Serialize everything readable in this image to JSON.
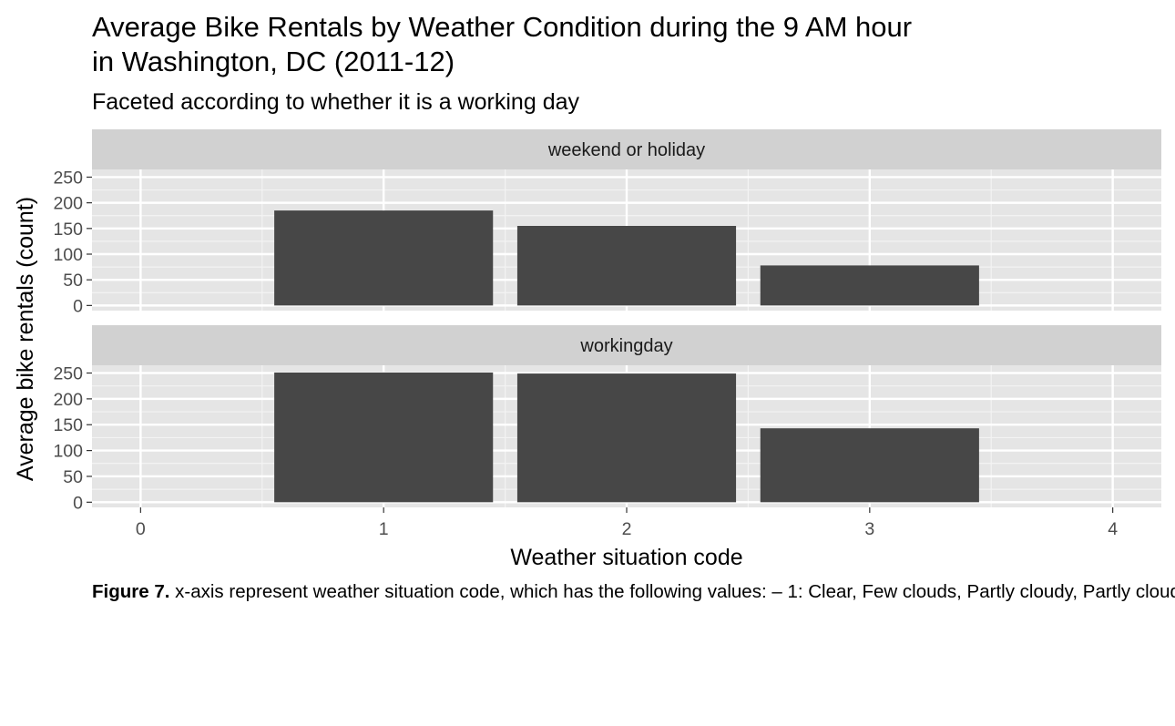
{
  "chart_data": {
    "type": "bar",
    "title_lines": [
      "Average Bike Rentals by Weather Condition during the 9 AM hour",
      "in Washington, DC (2011-12)"
    ],
    "subtitle": "Faceted according to whether it is a working day",
    "xlabel": "Weather situation code",
    "ylabel": "Average bike rentals (count)",
    "xlim": [
      -0.2,
      4.2
    ],
    "ylim": [
      -10,
      265
    ],
    "x_ticks": [
      0,
      1,
      2,
      3,
      4
    ],
    "x_tick_labels": [
      "0",
      "1",
      "2",
      "3",
      "4"
    ],
    "y_ticks": [
      0,
      50,
      100,
      150,
      200,
      250
    ],
    "y_tick_labels": [
      "0",
      "50",
      "100",
      "150",
      "200",
      "250"
    ],
    "grid": true,
    "bar_color": "#474747",
    "panel_background": "#e5e5e5",
    "strip_background": "#d1d1d1",
    "facets": [
      {
        "label": "weekend or holiday",
        "x": [
          1,
          2,
          3
        ],
        "values": [
          185,
          155,
          78
        ]
      },
      {
        "label": "workingday",
        "x": [
          1,
          2,
          3
        ],
        "values": [
          251,
          249,
          143
        ]
      }
    ]
  },
  "caption": {
    "label": "Figure 7.",
    "text": " x-axis represent weather situation code, which has the following values: – 1: Clear, Few clouds, Partly cloudy, Partly cloudy"
  }
}
